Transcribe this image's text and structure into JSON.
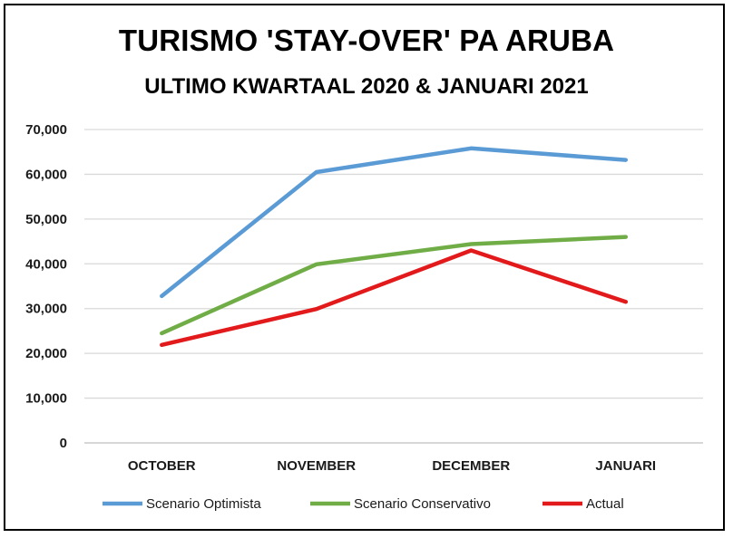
{
  "chart_data": {
    "type": "line",
    "title": "TURISMO 'STAY-OVER' PA ARUBA",
    "subtitle": "ULTIMO KWARTAAL 2020 & JANUARI 2021",
    "xlabel": "",
    "ylabel": "",
    "categories": [
      "OCTOBER",
      "NOVEMBER",
      "DECEMBER",
      "JANUARI"
    ],
    "ylim": [
      0,
      70000
    ],
    "yticks": [
      0,
      10000,
      20000,
      30000,
      40000,
      50000,
      60000,
      70000
    ],
    "ytick_labels": [
      "0",
      "10,000",
      "20,000",
      "30,000",
      "40,000",
      "50,000",
      "60,000",
      "70,000"
    ],
    "grid": true,
    "legend_position": "bottom",
    "series": [
      {
        "name": "Scenario Optimista",
        "color": "#5b9bd5",
        "values": [
          32800,
          60500,
          65800,
          63200
        ]
      },
      {
        "name": "Scenario Conservativo",
        "color": "#70ad47",
        "values": [
          24500,
          39900,
          44400,
          46000
        ]
      },
      {
        "name": "Actual",
        "color": "#e31a1c",
        "values": [
          21900,
          29900,
          43000,
          31500
        ]
      }
    ]
  }
}
